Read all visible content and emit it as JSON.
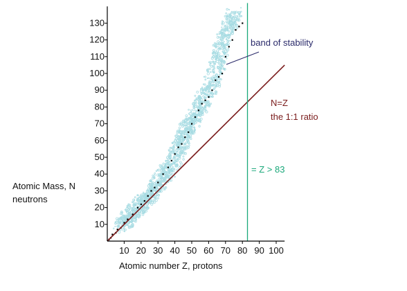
{
  "chart_data": {
    "type": "scatter",
    "title": "",
    "xlabel": "Atomic number Z, protons",
    "ylabel_line1": "Atomic Mass, N",
    "ylabel_line2": "neutrons",
    "xlim": [
      0,
      105
    ],
    "ylim": [
      0,
      140
    ],
    "x_ticks": [
      "10",
      "20",
      "30",
      "40",
      "50",
      "60",
      "70",
      "80",
      "90",
      "100"
    ],
    "y_ticks": [
      "10",
      "20",
      "30",
      "40",
      "50",
      "60",
      "70",
      "80",
      "90",
      "100",
      "110",
      "120",
      "130"
    ],
    "x_tick_values": [
      10,
      20,
      30,
      40,
      50,
      60,
      70,
      80,
      90,
      100
    ],
    "y_tick_values": [
      10,
      20,
      30,
      40,
      50,
      60,
      70,
      80,
      90,
      100,
      110,
      120,
      130
    ],
    "grid": false,
    "series": [
      {
        "kind": "band",
        "color": "#a8dce3",
        "points": [
          [
            8,
            8
          ],
          [
            12,
            13
          ],
          [
            16,
            18
          ],
          [
            20,
            22
          ],
          [
            24,
            26
          ],
          [
            28,
            31
          ],
          [
            32,
            37
          ],
          [
            36,
            42
          ],
          [
            40,
            50
          ],
          [
            44,
            58
          ],
          [
            46,
            65
          ],
          [
            50,
            72
          ],
          [
            54,
            78
          ],
          [
            58,
            86
          ],
          [
            62,
            95
          ],
          [
            66,
            108
          ],
          [
            68,
            118
          ],
          [
            72,
            128
          ],
          [
            76,
            136
          ]
        ]
      },
      {
        "kind": "stable-nuclides",
        "color": "#000000",
        "points": [
          [
            1,
            1
          ],
          [
            2,
            2
          ],
          [
            3,
            4
          ],
          [
            5,
            5
          ],
          [
            6,
            7
          ],
          [
            8,
            8
          ],
          [
            10,
            11
          ],
          [
            12,
            13
          ],
          [
            15,
            16
          ],
          [
            18,
            20
          ],
          [
            20,
            22
          ],
          [
            22,
            24
          ],
          [
            24,
            27
          ],
          [
            26,
            30
          ],
          [
            28,
            32
          ],
          [
            30,
            35
          ],
          [
            33,
            40
          ],
          [
            36,
            44
          ],
          [
            38,
            48
          ],
          [
            40,
            52
          ],
          [
            42,
            56
          ],
          [
            44,
            58
          ],
          [
            46,
            62
          ],
          [
            48,
            65
          ],
          [
            50,
            70
          ],
          [
            52,
            74
          ],
          [
            54,
            78
          ],
          [
            56,
            82
          ],
          [
            58,
            84
          ],
          [
            60,
            86
          ],
          [
            62,
            90
          ],
          [
            64,
            96
          ],
          [
            66,
            98
          ],
          [
            68,
            100
          ],
          [
            70,
            110
          ],
          [
            72,
            116
          ],
          [
            74,
            120
          ],
          [
            76,
            126
          ],
          [
            78,
            128
          ],
          [
            80,
            130
          ]
        ]
      },
      {
        "kind": "line",
        "name": "N=Z",
        "color": "#7a1c1c",
        "points": [
          [
            0,
            0
          ],
          [
            105,
            105
          ]
        ]
      },
      {
        "kind": "vline",
        "color": "#1aa87a",
        "x": 83
      }
    ],
    "annotations": {
      "band_label": "band of stability",
      "nz_line1": "N=Z",
      "nz_line2": "the 1:1 ratio",
      "z_limit": "= Z > 83"
    },
    "colors": {
      "axis": "#000000",
      "band": "#a8dce3",
      "dots": "#000000",
      "nz_line": "#7a1c1c",
      "z_line": "#1aa87a",
      "band_label": "#2a2a6a",
      "nz_label": "#7a1c1c",
      "z_label": "#1aa87a"
    }
  }
}
